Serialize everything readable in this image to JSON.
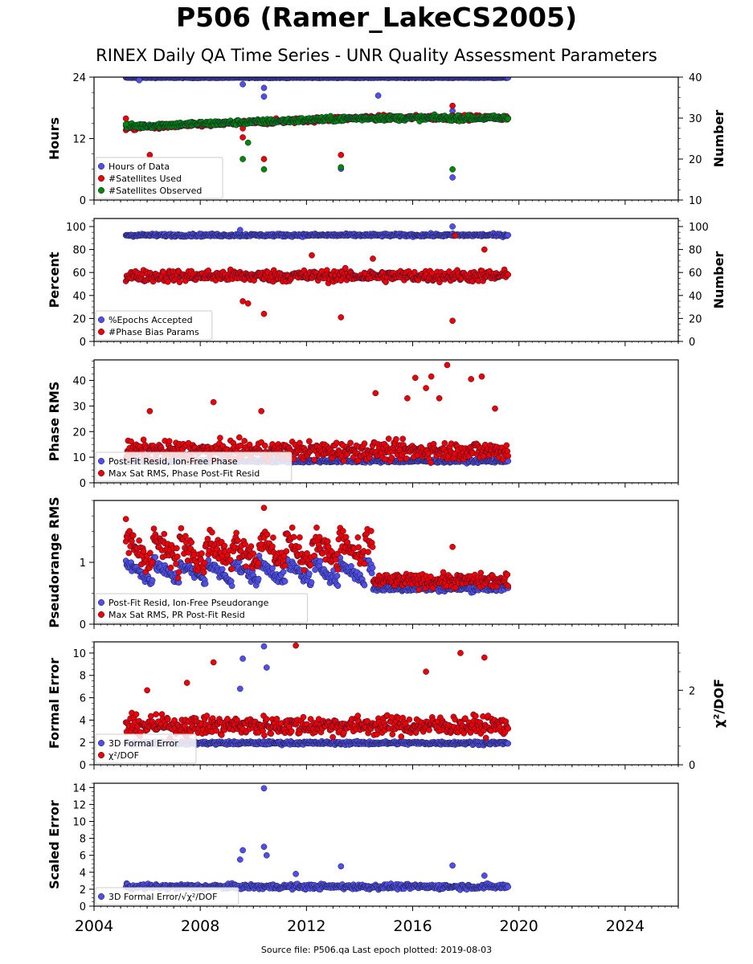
{
  "title": "P506 (Ramer_LakeCS2005)",
  "subtitle": "RINEX Daily QA Time Series - UNR Quality Assessment Parameters",
  "footer": "Source file: P506.qa Last epoch plotted: 2019-08-03",
  "colors": {
    "blue": "#5050e8",
    "red": "#ee0000",
    "green": "#008800",
    "edge": "#1a1a40"
  },
  "chart_data": [
    {
      "type": "scatter",
      "ylabel": "Hours",
      "y2label": "Number",
      "ylim": [
        0,
        24
      ],
      "yticks": [
        0,
        12,
        24
      ],
      "y2lim": [
        10,
        40
      ],
      "y2ticks": [
        10,
        20,
        30,
        40
      ],
      "xlim": [
        2004,
        2026
      ],
      "legend_position": "lower-left",
      "series": [
        {
          "name": "Hours of Data",
          "color": "blue",
          "axis": "left",
          "gen": "flat",
          "base": 23.9,
          "noise": 0.08,
          "outliers": [
            [
              2005.7,
              23.4
            ],
            [
              2009.6,
              22.6
            ],
            [
              2010.4,
              21.9
            ],
            [
              2010.4,
              20.2
            ],
            [
              2014.7,
              20.4
            ],
            [
              2013.3,
              6.1
            ],
            [
              2017.5,
              4.4
            ],
            [
              2017.5,
              17.4
            ]
          ]
        },
        {
          "name": "#Satellites Used",
          "color": "red",
          "axis": "right",
          "gen": "ramp",
          "base": 27.6,
          "end": 30.1,
          "noise": 0.6,
          "outliers": [
            [
              2006.1,
              21.0
            ],
            [
              2009.6,
              25.3
            ],
            [
              2009.6,
              27.5
            ],
            [
              2010.4,
              20.0
            ],
            [
              2013.3,
              21.0
            ],
            [
              2005.2,
              29.9
            ],
            [
              2017.5,
              33.0
            ]
          ]
        },
        {
          "name": "#Satellites Observed",
          "color": "green",
          "axis": "right",
          "gen": "ramp",
          "base": 28.0,
          "end": 30.0,
          "noise": 0.6,
          "outliers": [
            [
              2009.6,
              20.0
            ],
            [
              2009.8,
              24.0
            ],
            [
              2010.4,
              17.5
            ],
            [
              2013.3,
              18.0
            ],
            [
              2017.5,
              17.5
            ],
            [
              2005.2,
              28.5
            ]
          ]
        }
      ]
    },
    {
      "type": "scatter",
      "ylabel": "Percent",
      "y2label": "Number",
      "ylim": [
        0,
        107
      ],
      "yticks": [
        0,
        20,
        40,
        60,
        80,
        100
      ],
      "y2lim": [
        0,
        107
      ],
      "y2ticks": [
        0,
        20,
        40,
        60,
        80,
        100
      ],
      "xlim": [
        2004,
        2026
      ],
      "legend_position": "lower-left",
      "series": [
        {
          "name": "%Epochs Accepted",
          "color": "blue",
          "axis": "left",
          "gen": "flat",
          "base": 92.5,
          "noise": 1.2,
          "outliers": [
            [
              2009.5,
              97
            ],
            [
              2017.5,
              100
            ]
          ]
        },
        {
          "name": "#Phase Bias Params",
          "color": "red",
          "axis": "right",
          "gen": "flat",
          "base": 57,
          "noise": 5,
          "outliers": [
            [
              2009.6,
              35
            ],
            [
              2009.8,
              33
            ],
            [
              2010.4,
              24
            ],
            [
              2013.3,
              21
            ],
            [
              2017.5,
              18
            ],
            [
              2017.6,
              92
            ],
            [
              2018.7,
              80
            ],
            [
              2012.2,
              75
            ],
            [
              2014.5,
              72
            ]
          ]
        }
      ]
    },
    {
      "type": "scatter",
      "ylabel": "Phase RMS",
      "ylim": [
        0,
        48
      ],
      "yticks": [
        0,
        10,
        20,
        30,
        40
      ],
      "xlim": [
        2004,
        2026
      ],
      "legend_position": "lower-left",
      "series": [
        {
          "name": "Post-Fit Resid, Ion-Free Phase",
          "color": "blue",
          "axis": "left",
          "gen": "flat",
          "base": 8.5,
          "noise": 0.6,
          "outliers": []
        },
        {
          "name": "Max Sat RMS, Phase Post-Fit Resid",
          "color": "red",
          "axis": "left",
          "gen": "flat",
          "base": 12.5,
          "noise": 3.5,
          "outliers": [
            [
              2008.5,
              31.5
            ],
            [
              2006.1,
              28
            ],
            [
              2016.1,
              41
            ],
            [
              2016.7,
              41.5
            ],
            [
              2017.3,
              46
            ],
            [
              2018.2,
              40.5
            ],
            [
              2018.6,
              41.5
            ],
            [
              2014.6,
              35
            ],
            [
              2015.8,
              33
            ],
            [
              2016.5,
              37
            ],
            [
              2017.0,
              33
            ],
            [
              2019.1,
              29
            ],
            [
              2010.3,
              28
            ]
          ]
        }
      ]
    },
    {
      "type": "scatter",
      "ylabel": "Pseudorange RMS",
      "ylim": [
        0,
        2.0
      ],
      "yticks": [
        0,
        1
      ],
      "xlim": [
        2004,
        2026
      ],
      "legend_position": "lower-left",
      "series": [
        {
          "name": "Post-Fit Resid, Ion-Free Pseudorange",
          "color": "blue",
          "axis": "left",
          "gen": "wave",
          "base": 0.85,
          "end": 0.58,
          "noise": 0.1,
          "outliers": []
        },
        {
          "name": "Max Sat RMS, PR Post-Fit Resid",
          "color": "red",
          "axis": "left",
          "gen": "wave",
          "base": 1.2,
          "end": 0.7,
          "noise": 0.22,
          "outliers": [
            [
              2010.4,
              1.88
            ],
            [
              2005.2,
              1.7
            ],
            [
              2017.5,
              1.25
            ]
          ]
        }
      ]
    },
    {
      "type": "scatter",
      "ylabel": "Formal Error",
      "y2label": "χ²/DOF",
      "ylim": [
        0,
        11
      ],
      "yticks": [
        0,
        2,
        4,
        6,
        8,
        10
      ],
      "y2lim": [
        0,
        3.3
      ],
      "y2ticks": [
        0,
        2
      ],
      "xlim": [
        2004,
        2026
      ],
      "legend_position": "lower-left",
      "series": [
        {
          "name": "3D Formal Error",
          "color": "blue",
          "axis": "left",
          "gen": "flat",
          "base": 1.95,
          "noise": 0.15,
          "outliers": [
            [
              2009.6,
              9.5
            ],
            [
              2010.4,
              10.6
            ],
            [
              2009.5,
              6.8
            ],
            [
              2010.5,
              8.7
            ]
          ]
        },
        {
          "name": "χ²/DOF",
          "color": "red",
          "axis": "right",
          "gen": "flat",
          "base": 1.05,
          "noise": 0.25,
          "outliers": [
            [
              2008.5,
              2.75
            ],
            [
              2011.6,
              3.2
            ],
            [
              2017.8,
              3.0
            ],
            [
              2018.7,
              2.88
            ],
            [
              2006.0,
              2.0
            ],
            [
              2007.5,
              2.2
            ],
            [
              2016.5,
              2.5
            ]
          ]
        }
      ]
    },
    {
      "type": "scatter",
      "ylabel": "Scaled Error",
      "ylim": [
        0,
        14.5
      ],
      "yticks": [
        0,
        2,
        4,
        6,
        8,
        10,
        12,
        14
      ],
      "xlim": [
        2004,
        2026
      ],
      "xticks": [
        2004,
        2008,
        2012,
        2016,
        2020,
        2024
      ],
      "legend_position": "lower-left",
      "series": [
        {
          "name": "3D Formal Error/√χ²/DOF",
          "color": "blue",
          "axis": "left",
          "gen": "flat",
          "base": 2.3,
          "noise": 0.3,
          "outliers": [
            [
              2010.4,
              13.9
            ],
            [
              2009.6,
              6.6
            ],
            [
              2010.4,
              7.0
            ],
            [
              2013.3,
              4.7
            ],
            [
              2017.5,
              4.8
            ],
            [
              2011.6,
              3.8
            ],
            [
              2018.7,
              3.6
            ],
            [
              2009.5,
              5.5
            ],
            [
              2010.5,
              6.0
            ]
          ]
        }
      ]
    }
  ],
  "data_start": 2005.2,
  "data_end": 2019.59
}
